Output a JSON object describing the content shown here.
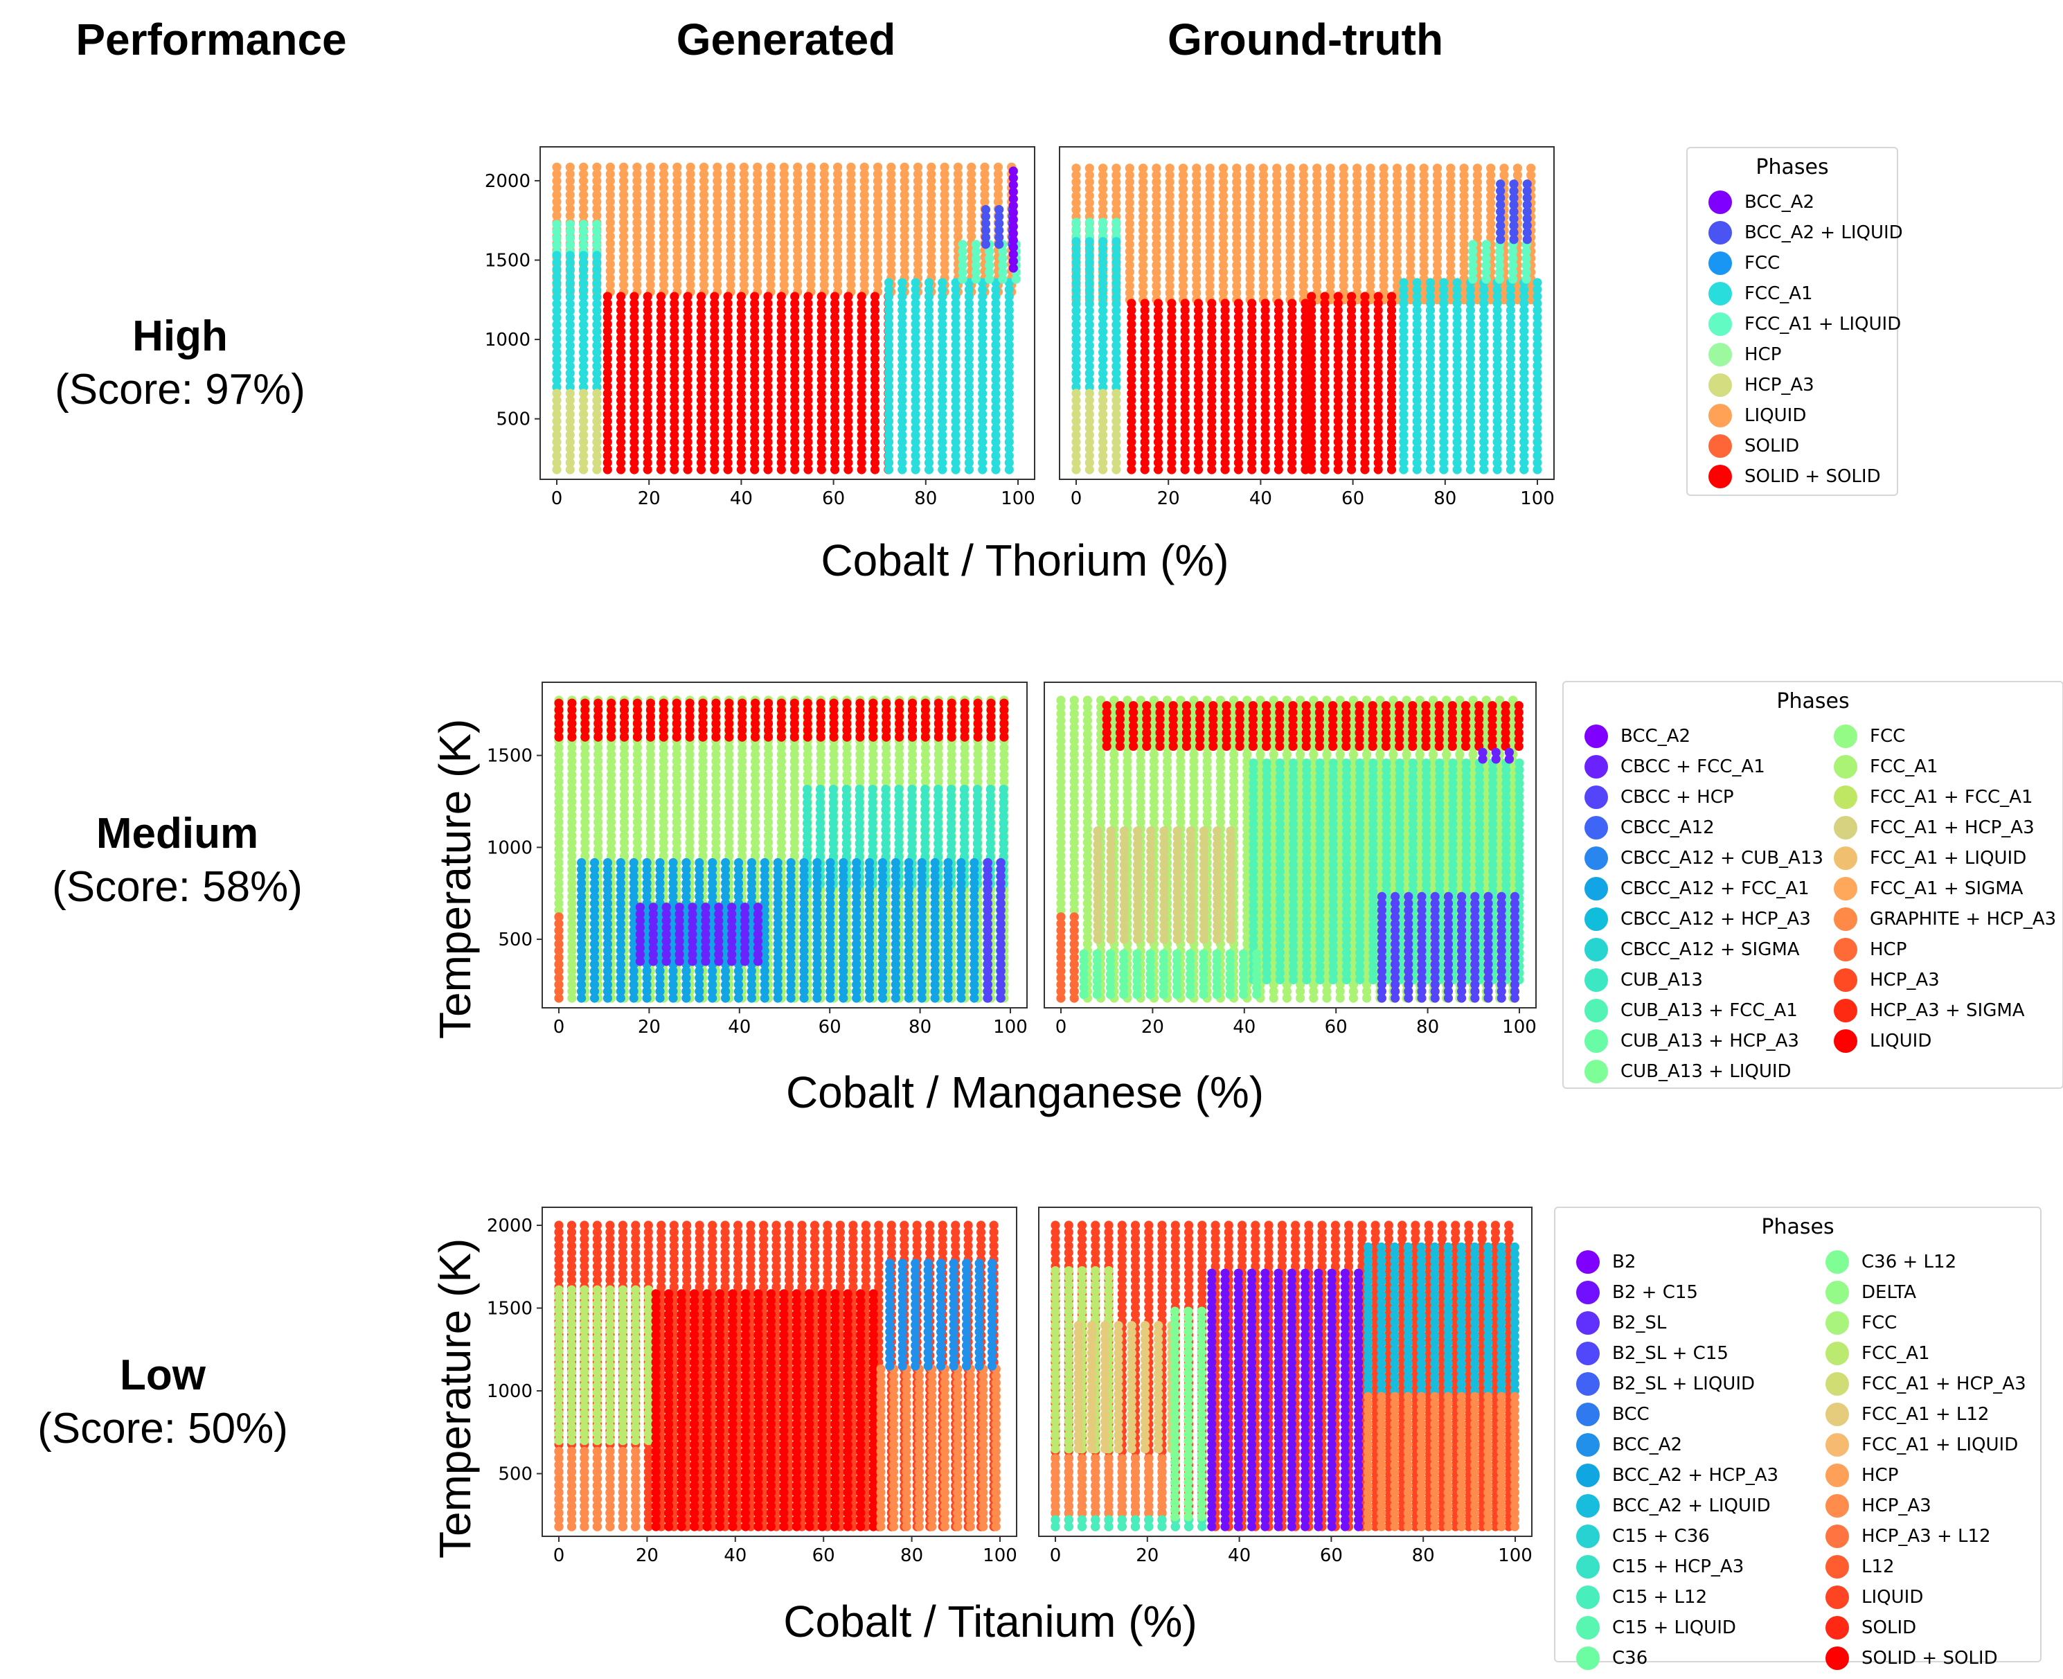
{
  "headers": {
    "performance": "Performance",
    "generated": "Generated",
    "ground_truth": "Ground-truth"
  },
  "rows": [
    {
      "level": "High",
      "score": "(Score: 97%)",
      "xlabel": "Cobalt / Thorium (%)",
      "ylabel": ""
    },
    {
      "level": "Medium",
      "score": "(Score: 58%)",
      "xlabel": "Cobalt / Manganese (%)",
      "ylabel": "Temperature (K)"
    },
    {
      "level": "Low",
      "score": "(Score: 50%)",
      "xlabel": "Cobalt / Titanium (%)",
      "ylabel": "Temperature (K)"
    }
  ],
  "legends": [
    {
      "title": "Phases",
      "items": [
        {
          "label": "BCC_A2",
          "color": "#8000ff"
        },
        {
          "label": "BCC_A2 + LIQUID",
          "color": "#4a54f3"
        },
        {
          "label": "FCC",
          "color": "#1996f3"
        },
        {
          "label": "FCC_A1",
          "color": "#2adddd"
        },
        {
          "label": "FCC_A1 + LIQUID",
          "color": "#62fbc4"
        },
        {
          "label": "HCP",
          "color": "#9cf9a0"
        },
        {
          "label": "HCP_A3",
          "color": "#d4dd80"
        },
        {
          "label": "LIQUID",
          "color": "#ffa256"
        },
        {
          "label": "SOLID",
          "color": "#ff6637"
        },
        {
          "label": "SOLID + SOLID",
          "color": "#ff0000"
        }
      ]
    },
    {
      "title": "Phases",
      "items": [
        {
          "label": "BCC_A2",
          "color": "#8000ff"
        },
        {
          "label": "CBCC + FCC_A1",
          "color": "#6a22fe"
        },
        {
          "label": "CBCC + HCP",
          "color": "#5444fa"
        },
        {
          "label": "CBCC_A12",
          "color": "#3e65f5"
        },
        {
          "label": "CBCC_A12 + CUB_A13",
          "color": "#2886ee"
        },
        {
          "label": "CBCC_A12 + FCC_A1",
          "color": "#12a4e5"
        },
        {
          "label": "CBCC_A12 + HCP_A3",
          "color": "#10bedb"
        },
        {
          "label": "CBCC_A12 + SIGMA",
          "color": "#26d5d0"
        },
        {
          "label": "CUB_A13",
          "color": "#3ce7c3"
        },
        {
          "label": "CUB_A13 + FCC_A1",
          "color": "#52f4b5"
        },
        {
          "label": "CUB_A13 + HCP_A3",
          "color": "#68fca6"
        },
        {
          "label": "CUB_A13 + LIQUID",
          "color": "#7efe96"
        },
        {
          "label": "FCC",
          "color": "#94fb86"
        },
        {
          "label": "FCC_A1",
          "color": "#aaf374"
        },
        {
          "label": "FCC_A1 + FCC_A1",
          "color": "#c0e764"
        },
        {
          "label": "FCC_A1 + HCP_A3",
          "color": "#d6d280"
        },
        {
          "label": "FCC_A1 + LIQUID",
          "color": "#f0c070"
        },
        {
          "label": "FCC_A1 + SIGMA",
          "color": "#ffa85c"
        },
        {
          "label": "GRAPHITE + HCP_A3",
          "color": "#ff8a48"
        },
        {
          "label": "HCP",
          "color": "#ff6a36"
        },
        {
          "label": "HCP_A3",
          "color": "#ff4a24"
        },
        {
          "label": "HCP_A3 + SIGMA",
          "color": "#ff2a12"
        },
        {
          "label": "LIQUID",
          "color": "#ff0000"
        }
      ]
    },
    {
      "title": "Phases",
      "items": [
        {
          "label": "B2",
          "color": "#8000ff"
        },
        {
          "label": "B2 + C15",
          "color": "#7010fe"
        },
        {
          "label": "B2_SL",
          "color": "#6030fd"
        },
        {
          "label": "B2_SL + C15",
          "color": "#5048fa"
        },
        {
          "label": "B2_SL + LIQUID",
          "color": "#4062f5"
        },
        {
          "label": "BCC",
          "color": "#307af0"
        },
        {
          "label": "BCC_A2",
          "color": "#2090ea"
        },
        {
          "label": "BCC_A2 + HCP_A3",
          "color": "#10a6e2"
        },
        {
          "label": "BCC_A2 + LIQUID",
          "color": "#18bcdc"
        },
        {
          "label": "C15 + C36",
          "color": "#28d2d2"
        },
        {
          "label": "C15 + HCP_A3",
          "color": "#38e2c6"
        },
        {
          "label": "C15 + L12",
          "color": "#48eebb"
        },
        {
          "label": "C15 + LIQUID",
          "color": "#58f6b0"
        },
        {
          "label": "C36",
          "color": "#6cfca2"
        },
        {
          "label": "C36 + L12",
          "color": "#80fe96"
        },
        {
          "label": "DELTA",
          "color": "#94fb88"
        },
        {
          "label": "FCC",
          "color": "#a8f47c"
        },
        {
          "label": "FCC_A1",
          "color": "#bcea70"
        },
        {
          "label": "FCC_A1 + HCP_A3",
          "color": "#d0dc74"
        },
        {
          "label": "FCC_A1 + L12",
          "color": "#e4cc7c"
        },
        {
          "label": "FCC_A1 + LIQUID",
          "color": "#f6ba70"
        },
        {
          "label": "HCP",
          "color": "#ffa058"
        },
        {
          "label": "HCP_A3",
          "color": "#ff8c4c"
        },
        {
          "label": "HCP_A3 + L12",
          "color": "#ff7440"
        },
        {
          "label": "L12",
          "color": "#ff5c30"
        },
        {
          "label": "LIQUID",
          "color": "#ff4424"
        },
        {
          "label": "SOLID",
          "color": "#ff2814"
        },
        {
          "label": "SOLID + SOLID",
          "color": "#ff0000"
        }
      ]
    }
  ],
  "chart_data": [
    {
      "type": "scatter",
      "row": "High",
      "panel": "Generated",
      "xticks": [
        "0",
        "20",
        "40",
        "60",
        "80",
        "100"
      ],
      "yticks": [
        "500",
        "1000",
        "1500",
        "2000"
      ],
      "xlim": [
        0,
        100
      ],
      "ylim": [
        180,
        2100
      ],
      "regions": [
        {
          "phase": "LIQUID",
          "color": "#ffa256",
          "x": [
            0,
            100
          ],
          "y": [
            1300,
            2100
          ]
        },
        {
          "phase": "FCC_A1 + LIQUID",
          "color": "#62fbc4",
          "x": [
            0,
            10
          ],
          "y": [
            1550,
            1750
          ]
        },
        {
          "phase": "FCC_A1",
          "color": "#2adddd",
          "x": [
            0,
            10
          ],
          "y": [
            700,
            1550
          ]
        },
        {
          "phase": "HCP_A3",
          "color": "#d4dd80",
          "x": [
            0,
            10
          ],
          "y": [
            180,
            700
          ]
        },
        {
          "phase": "SOLID + SOLID",
          "color": "#ff0000",
          "x": [
            11,
            72
          ],
          "y": [
            180,
            1280
          ]
        },
        {
          "phase": "FCC_A1",
          "color": "#2adddd",
          "x": [
            72,
            100
          ],
          "y": [
            180,
            1380
          ]
        },
        {
          "phase": "FCC_A1 + LIQUID",
          "color": "#62fbc4",
          "x": [
            88,
            100
          ],
          "y": [
            1380,
            1600
          ]
        },
        {
          "phase": "BCC_A2 + LIQUID",
          "color": "#4a54f3",
          "x": [
            93,
            100
          ],
          "y": [
            1600,
            1850
          ]
        },
        {
          "phase": "BCC_A2",
          "color": "#8000ff",
          "x": [
            99,
            100
          ],
          "y": [
            1450,
            2100
          ]
        }
      ]
    },
    {
      "type": "scatter",
      "row": "High",
      "panel": "Ground-truth",
      "xticks": [
        "0",
        "20",
        "40",
        "60",
        "80",
        "100"
      ],
      "yticks": [],
      "xlim": [
        0,
        100
      ],
      "ylim": [
        180,
        2100
      ],
      "regions": [
        {
          "phase": "LIQUID",
          "color": "#ffa256",
          "x": [
            0,
            100
          ],
          "y": [
            1250,
            2100
          ]
        },
        {
          "phase": "FCC_A1 + LIQUID",
          "color": "#62fbc4",
          "x": [
            0,
            11
          ],
          "y": [
            1650,
            1750
          ]
        },
        {
          "phase": "FCC_A1",
          "color": "#2adddd",
          "x": [
            0,
            11
          ],
          "y": [
            700,
            1650
          ]
        },
        {
          "phase": "HCP_A3",
          "color": "#d4dd80",
          "x": [
            0,
            11
          ],
          "y": [
            180,
            700
          ]
        },
        {
          "phase": "SOLID + SOLID",
          "color": "#ff0000",
          "x": [
            12,
            50
          ],
          "y": [
            180,
            1240
          ]
        },
        {
          "phase": "SOLID + SOLID",
          "color": "#ff0000",
          "x": [
            51,
            70
          ],
          "y": [
            180,
            1280
          ]
        },
        {
          "phase": "FCC_A1",
          "color": "#2adddd",
          "x": [
            71,
            100
          ],
          "y": [
            180,
            1380
          ]
        },
        {
          "phase": "FCC_A1 + LIQUID",
          "color": "#62fbc4",
          "x": [
            86,
            100
          ],
          "y": [
            1380,
            1630
          ]
        },
        {
          "phase": "BCC_A2 + LIQUID",
          "color": "#4a54f3",
          "x": [
            92,
            100
          ],
          "y": [
            1630,
            2000
          ]
        }
      ]
    },
    {
      "type": "scatter",
      "row": "Medium",
      "panel": "Generated",
      "xticks": [
        "0",
        "20",
        "40",
        "60",
        "80",
        "100"
      ],
      "yticks": [
        "500",
        "1000",
        "1500"
      ],
      "xlim": [
        0,
        100
      ],
      "ylim": [
        180,
        1800
      ],
      "regions": [
        {
          "phase": "FCC_A1",
          "color": "#aaf374",
          "x": [
            0,
            100
          ],
          "y": [
            180,
            1800
          ]
        },
        {
          "phase": "LIQUID",
          "color": "#ff0000",
          "x": [
            0,
            100
          ],
          "y": [
            1600,
            1800
          ]
        },
        {
          "phase": "CUB_A13",
          "color": "#3ce7c3",
          "x": [
            55,
            100
          ],
          "y": [
            800,
            1350
          ]
        },
        {
          "phase": "CBCC_A12 + FCC_A1",
          "color": "#12a4e5",
          "x": [
            5,
            100
          ],
          "y": [
            180,
            950
          ]
        },
        {
          "phase": "CBCC + FCC_A1",
          "color": "#6a22fe",
          "x": [
            18,
            45
          ],
          "y": [
            380,
            700
          ]
        },
        {
          "phase": "CBCC + HCP",
          "color": "#5444fa",
          "x": [
            95,
            100
          ],
          "y": [
            180,
            950
          ]
        },
        {
          "phase": "HCP",
          "color": "#ff6a36",
          "x": [
            0,
            2
          ],
          "y": [
            180,
            650
          ]
        }
      ]
    },
    {
      "type": "scatter",
      "row": "Medium",
      "panel": "Ground-truth",
      "xticks": [
        "0",
        "20",
        "40",
        "60",
        "80",
        "100"
      ],
      "yticks": [],
      "xlim": [
        0,
        100
      ],
      "ylim": [
        180,
        1800
      ],
      "regions": [
        {
          "phase": "FCC_A1",
          "color": "#aaf374",
          "x": [
            0,
            100
          ],
          "y": [
            180,
            1800
          ]
        },
        {
          "phase": "LIQUID",
          "color": "#ff0000",
          "x": [
            10,
            100
          ],
          "y": [
            1550,
            1800
          ]
        },
        {
          "phase": "FCC_A1 + HCP_A3",
          "color": "#d6d280",
          "x": [
            8,
            38
          ],
          "y": [
            500,
            1100
          ]
        },
        {
          "phase": "CUB_A13 + FCC_A1",
          "color": "#52f4b5",
          "x": [
            42,
            100
          ],
          "y": [
            280,
            1480
          ]
        },
        {
          "phase": "CUB_A13 + HCP_A3",
          "color": "#68fca6",
          "x": [
            5,
            45
          ],
          "y": [
            200,
            440
          ]
        },
        {
          "phase": "CBCC + HCP",
          "color": "#5444fa",
          "x": [
            70,
            100
          ],
          "y": [
            180,
            750
          ]
        },
        {
          "phase": "HCP",
          "color": "#ff6a36",
          "x": [
            0,
            4
          ],
          "y": [
            180,
            650
          ]
        },
        {
          "phase": "CBCC + FCC_A1",
          "color": "#6a22fe",
          "x": [
            92,
            100
          ],
          "y": [
            1480,
            1550
          ]
        }
      ]
    },
    {
      "type": "scatter",
      "row": "Low",
      "panel": "Generated",
      "xticks": [
        "0",
        "20",
        "40",
        "60",
        "80",
        "100"
      ],
      "yticks": [
        "500",
        "1000",
        "1500",
        "2000"
      ],
      "xlim": [
        0,
        100
      ],
      "ylim": [
        180,
        2000
      ],
      "regions": [
        {
          "phase": "LIQUID",
          "color": "#ff4424",
          "x": [
            0,
            100
          ],
          "y": [
            180,
            2000
          ]
        },
        {
          "phase": "FCC_A1",
          "color": "#bcea70",
          "x": [
            0,
            22
          ],
          "y": [
            700,
            1650
          ]
        },
        {
          "phase": "HCP_A3",
          "color": "#ff8c4c",
          "x": [
            0,
            20
          ],
          "y": [
            180,
            650
          ]
        },
        {
          "phase": "SOLID + SOLID",
          "color": "#ff0000",
          "x": [
            22,
            72
          ],
          "y": [
            180,
            1600
          ]
        },
        {
          "phase": "HCP_A3",
          "color": "#ff8c4c",
          "x": [
            73,
            100
          ],
          "y": [
            180,
            1150
          ]
        },
        {
          "phase": "BCC_A2",
          "color": "#2090ea",
          "x": [
            75,
            100
          ],
          "y": [
            1150,
            1800
          ]
        }
      ]
    },
    {
      "type": "scatter",
      "row": "Low",
      "panel": "Ground-truth",
      "xticks": [
        "0",
        "20",
        "40",
        "60",
        "80",
        "100"
      ],
      "yticks": [],
      "xlim": [
        0,
        100
      ],
      "ylim": [
        180,
        2000
      ],
      "regions": [
        {
          "phase": "LIQUID",
          "color": "#ff4424",
          "x": [
            0,
            100
          ],
          "y": [
            180,
            2000
          ]
        },
        {
          "phase": "FCC_A1",
          "color": "#bcea70",
          "x": [
            0,
            14
          ],
          "y": [
            650,
            1750
          ]
        },
        {
          "phase": "FCC_A1 + L12",
          "color": "#e4cc7c",
          "x": [
            5,
            26
          ],
          "y": [
            650,
            1400
          ]
        },
        {
          "phase": "HCP_A3",
          "color": "#ff8c4c",
          "x": [
            0,
            26
          ],
          "y": [
            260,
            620
          ]
        },
        {
          "phase": "C15 + L12",
          "color": "#48eebb",
          "x": [
            0,
            34
          ],
          "y": [
            180,
            240
          ]
        },
        {
          "phase": "C36 + L12",
          "color": "#80fe96",
          "x": [
            26,
            34
          ],
          "y": [
            240,
            1500
          ]
        },
        {
          "phase": "B2 + C15",
          "color": "#7010fe",
          "x": [
            34,
            68
          ],
          "y": [
            180,
            1750
          ]
        },
        {
          "phase": "BCC_A2 + LIQUID",
          "color": "#18bcdc",
          "x": [
            68,
            100
          ],
          "y": [
            1000,
            1900
          ]
        },
        {
          "phase": "HCP_A3",
          "color": "#ff8c4c",
          "x": [
            68,
            100
          ],
          "y": [
            180,
            980
          ]
        }
      ]
    }
  ]
}
